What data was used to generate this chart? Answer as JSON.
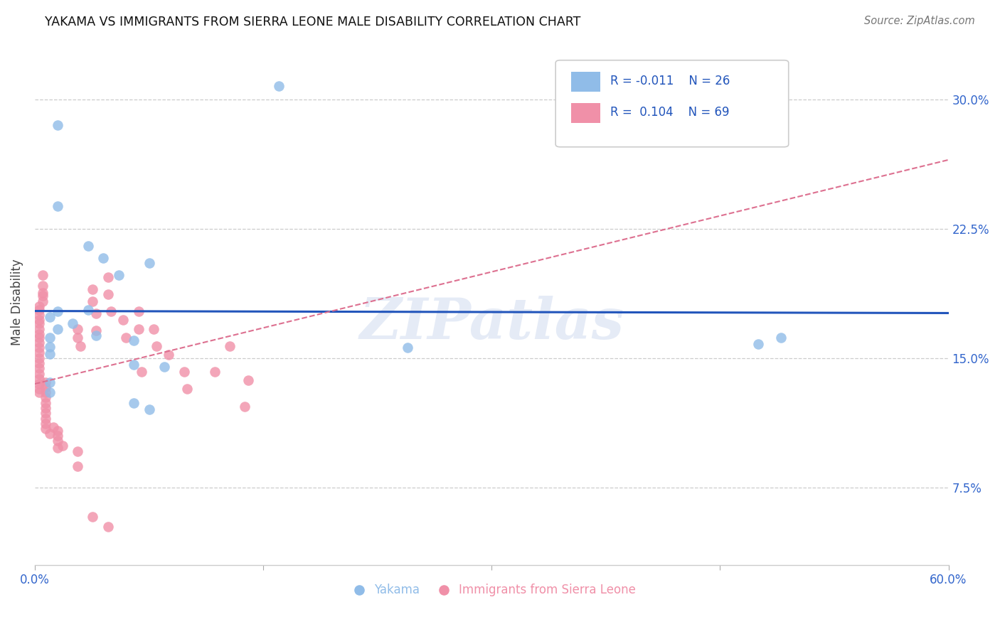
{
  "title": "YAKAMA VS IMMIGRANTS FROM SIERRA LEONE MALE DISABILITY CORRELATION CHART",
  "source": "Source: ZipAtlas.com",
  "ylabel": "Male Disability",
  "yticks": [
    0.075,
    0.15,
    0.225,
    0.3
  ],
  "ytick_labels": [
    "7.5%",
    "15.0%",
    "22.5%",
    "30.0%"
  ],
  "xmin": 0.0,
  "xmax": 0.6,
  "ymin": 0.03,
  "ymax": 0.335,
  "legend_R_blue": "-0.011",
  "legend_N_blue": "26",
  "legend_R_pink": "0.104",
  "legend_N_pink": "69",
  "blue_color": "#90bce8",
  "pink_color": "#f090a8",
  "trendline_blue_color": "#2255bb",
  "trendline_pink_color": "#dd7090",
  "watermark": "ZIPatlas",
  "blue_points": [
    [
      0.015,
      0.285
    ],
    [
      0.16,
      0.308
    ],
    [
      0.015,
      0.238
    ],
    [
      0.035,
      0.215
    ],
    [
      0.045,
      0.208
    ],
    [
      0.055,
      0.198
    ],
    [
      0.075,
      0.205
    ],
    [
      0.035,
      0.178
    ],
    [
      0.015,
      0.177
    ],
    [
      0.01,
      0.174
    ],
    [
      0.025,
      0.17
    ],
    [
      0.015,
      0.167
    ],
    [
      0.04,
      0.163
    ],
    [
      0.01,
      0.162
    ],
    [
      0.065,
      0.16
    ],
    [
      0.01,
      0.1565
    ],
    [
      0.01,
      0.1525
    ],
    [
      0.065,
      0.146
    ],
    [
      0.085,
      0.145
    ],
    [
      0.245,
      0.156
    ],
    [
      0.01,
      0.136
    ],
    [
      0.01,
      0.13
    ],
    [
      0.065,
      0.124
    ],
    [
      0.075,
      0.12
    ],
    [
      0.475,
      0.158
    ],
    [
      0.49,
      0.162
    ]
  ],
  "pink_points": [
    [
      0.005,
      0.198
    ],
    [
      0.005,
      0.192
    ],
    [
      0.005,
      0.188
    ],
    [
      0.005,
      0.186
    ],
    [
      0.005,
      0.183
    ],
    [
      0.003,
      0.18
    ],
    [
      0.003,
      0.178
    ],
    [
      0.003,
      0.175
    ],
    [
      0.003,
      0.172
    ],
    [
      0.003,
      0.17
    ],
    [
      0.003,
      0.167
    ],
    [
      0.003,
      0.164
    ],
    [
      0.003,
      0.162
    ],
    [
      0.003,
      0.159
    ],
    [
      0.003,
      0.156
    ],
    [
      0.003,
      0.153
    ],
    [
      0.003,
      0.15
    ],
    [
      0.003,
      0.147
    ],
    [
      0.003,
      0.144
    ],
    [
      0.003,
      0.141
    ],
    [
      0.003,
      0.138
    ],
    [
      0.003,
      0.135
    ],
    [
      0.003,
      0.132
    ],
    [
      0.003,
      0.13
    ],
    [
      0.007,
      0.136
    ],
    [
      0.007,
      0.133
    ],
    [
      0.007,
      0.13
    ],
    [
      0.007,
      0.127
    ],
    [
      0.007,
      0.124
    ],
    [
      0.007,
      0.121
    ],
    [
      0.007,
      0.118
    ],
    [
      0.007,
      0.115
    ],
    [
      0.007,
      0.112
    ],
    [
      0.007,
      0.109
    ],
    [
      0.01,
      0.106
    ],
    [
      0.012,
      0.11
    ],
    [
      0.015,
      0.108
    ],
    [
      0.015,
      0.105
    ],
    [
      0.015,
      0.102
    ],
    [
      0.015,
      0.098
    ],
    [
      0.028,
      0.167
    ],
    [
      0.028,
      0.162
    ],
    [
      0.03,
      0.157
    ],
    [
      0.038,
      0.19
    ],
    [
      0.038,
      0.183
    ],
    [
      0.04,
      0.176
    ],
    [
      0.04,
      0.166
    ],
    [
      0.048,
      0.197
    ],
    [
      0.048,
      0.187
    ],
    [
      0.05,
      0.177
    ],
    [
      0.058,
      0.172
    ],
    [
      0.06,
      0.162
    ],
    [
      0.068,
      0.177
    ],
    [
      0.068,
      0.167
    ],
    [
      0.07,
      0.142
    ],
    [
      0.078,
      0.167
    ],
    [
      0.08,
      0.157
    ],
    [
      0.088,
      0.152
    ],
    [
      0.098,
      0.142
    ],
    [
      0.1,
      0.132
    ],
    [
      0.118,
      0.142
    ],
    [
      0.128,
      0.157
    ],
    [
      0.138,
      0.122
    ],
    [
      0.14,
      0.137
    ],
    [
      0.038,
      0.058
    ],
    [
      0.048,
      0.052
    ],
    [
      0.028,
      0.096
    ],
    [
      0.018,
      0.099
    ],
    [
      0.028,
      0.087
    ]
  ]
}
